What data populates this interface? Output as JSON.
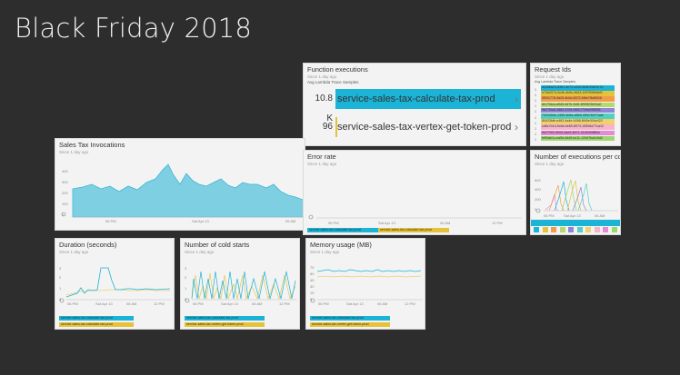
{
  "slide_title": "Black Friday 2018",
  "function_executions": {
    "title": "Function executions",
    "since": "Since 1 day ago",
    "table_label": "Avg Lambda Trace Samples",
    "rows": [
      {
        "count": "10.8 K",
        "name": "service-sales-tax-calculate-tax-prod",
        "color": "#1bb3d6",
        "fill": 1.0
      },
      {
        "count": "96",
        "name": "service-sales-tax-vertex-get-token-prod",
        "color": "#e6c23a",
        "fill": 0.01
      }
    ]
  },
  "request_ids": {
    "title": "Request Ids",
    "since": "Since 1 day ago",
    "table_label": "Avg Lambda Trace Samples",
    "rows": [
      {
        "n": "1",
        "id": "a2c68a24-d4b1-4e72-a3c5-6b8b15ef1e7d",
        "color": "#1bb3d6"
      },
      {
        "n": "1",
        "id": "e73d2074-2e4b-4b9c-9643-1f97909b5ef9",
        "color": "#e6c23a"
      },
      {
        "n": "1",
        "id": "3f031778-3d25-4b0d-8372-6f6e7f8d5928",
        "color": "#f29c4a"
      },
      {
        "n": "1",
        "id": "de17fdca-a9d5-4d7b-9c6f-4f59503b51a0",
        "color": "#b7d86b"
      },
      {
        "n": "1",
        "id": "9b27f0a3-1862-4794-9f45-77e9c29f2f05",
        "color": "#8f85d6"
      },
      {
        "n": "1",
        "id": "7324454e-1355-4b5a-a5b9-3f9e78477aae",
        "color": "#4fd1c5"
      },
      {
        "n": "1",
        "id": "80423fdb-e463-4a4e-b268-8f40e304e422",
        "color": "#f2d06b"
      },
      {
        "n": "1",
        "id": "cd8c7b1d-9c8d-4e69-8973-15506a77ca12",
        "color": "#f7b4c9"
      },
      {
        "n": "1",
        "id": "9b27903-3b0d-4ae9-8b71-310b3f4ff80a",
        "color": "#e58ad5"
      },
      {
        "n": "1",
        "id": "bf90ab1c-ea5d-4d49-bc11-120d7ba2c9d2",
        "color": "#9cd76f"
      }
    ]
  },
  "sales_tax": {
    "title": "Sales Tax Invocations",
    "since": "Since 1 day ago",
    "yticks": [
      "400",
      "300",
      "200",
      "100",
      "0"
    ],
    "xticks": [
      "06 PM",
      "Sat Apr 13",
      "06 AM"
    ]
  },
  "error_rate": {
    "title": "Error rate",
    "since": "Since 1 day ago",
    "xticks": [
      "06 PM",
      "Sat Apr 13",
      "06 AM",
      "12 PM"
    ],
    "legend": [
      "service-sales-tax-calculate-tax-prod",
      "service-sales-tax-calculate-tax-prod"
    ]
  },
  "executions_per": {
    "title": "Number of executions per co...",
    "since": "Since 1 day ago",
    "yticks": [
      "600",
      "400",
      "200",
      "0"
    ],
    "xticks": [
      "06 PM",
      "Sat Apr 13",
      "06 AM"
    ],
    "swatches": [
      "#1bb3d6",
      "#e6c23a",
      "#f29c4a",
      "#b7d86b",
      "#8f85d6",
      "#4fd1c5",
      "#f2d06b",
      "#f7b4c9",
      "#e58ad5",
      "#9cd76f"
    ]
  },
  "duration": {
    "title": "Duration (seconds)",
    "since": "Since 1 day ago",
    "yticks": [
      "3",
      "2",
      "1",
      "0"
    ],
    "xticks": [
      "06 PM",
      "Sat Apr 13",
      "06 AM",
      "12 PM"
    ],
    "legend": [
      "service-sales-tax-calculate-tax-prod",
      "service-sales-tax-calculate-tax-prod"
    ]
  },
  "cold_starts": {
    "title": "Number of cold starts",
    "since": "Since 1 day ago",
    "yticks": [
      "3",
      "2",
      "1",
      "0"
    ],
    "xticks": [
      "06 PM",
      "Sat Apr 13",
      "06 AM",
      "12 PM"
    ],
    "legend": [
      "service-sales-tax-calculate-tax-prod",
      "service-sales-tax-vertex-get-token-prod"
    ]
  },
  "memory": {
    "title": "Memory usage (MB)",
    "since": "Since 1 day ago",
    "yticks": [
      "75",
      "60",
      "45",
      "30",
      "15",
      "0"
    ],
    "xticks": [
      "06 PM",
      "Sat Apr 13",
      "06 AM",
      "12 PM"
    ],
    "legend": [
      "service-sales-tax-calculate-tax-prod",
      "service-sales-tax-vertex-get-token-prod"
    ]
  }
}
